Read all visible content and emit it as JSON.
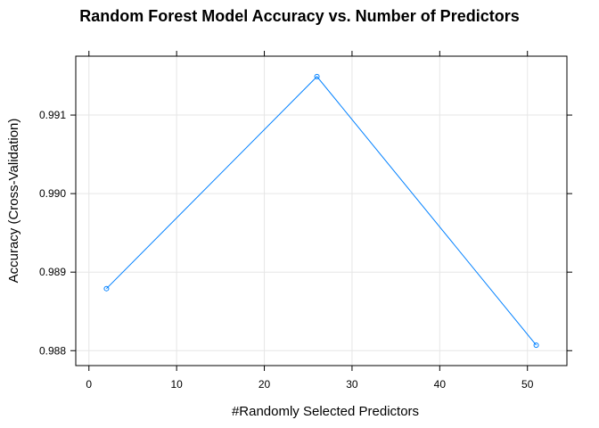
{
  "chart_data": {
    "type": "line",
    "title": "Random Forest Model Accuracy vs. Number of Predictors",
    "xlabel": "#Randomly Selected Predictors",
    "ylabel": "Accuracy (Cross-Validation)",
    "x": [
      2,
      26,
      51
    ],
    "series": [
      {
        "values": [
          0.98879,
          0.99149,
          0.98807
        ]
      }
    ],
    "xlim": [
      -1.5,
      54.5
    ],
    "ylim": [
      0.98781,
      0.99175
    ],
    "xticks": [
      0,
      10,
      20,
      30,
      40,
      50
    ],
    "xtick_labels": [
      "0",
      "10",
      "20",
      "30",
      "40",
      "50"
    ],
    "yticks": [
      0.988,
      0.989,
      0.99,
      0.991
    ],
    "ytick_labels": [
      "0.988",
      "0.989",
      "0.990",
      "0.991"
    ],
    "grid": true,
    "line_color": "#0080ff",
    "grid_color": "#e6e6e6"
  }
}
